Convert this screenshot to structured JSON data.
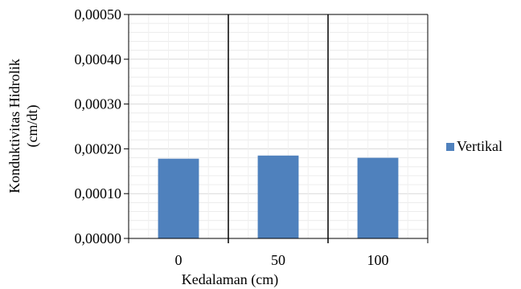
{
  "chart_data": {
    "type": "bar",
    "title": "",
    "xlabel": "Kedalaman (cm)",
    "ylabel_lines": [
      "Konduktivitas Hidrolik",
      "(cm/dt)"
    ],
    "categories": [
      "0",
      "50",
      "100"
    ],
    "series": [
      {
        "name": "Vertikal",
        "values": [
          0.000178,
          0.000185,
          0.00018
        ]
      }
    ],
    "ylim": [
      0,
      0.0005
    ],
    "yticks": [
      "0,00000",
      "0,00010",
      "0,00020",
      "0,00030",
      "0,00040",
      "0,00050"
    ],
    "grid": true,
    "legend_position": "right",
    "bar_color": "#4f81bd"
  }
}
